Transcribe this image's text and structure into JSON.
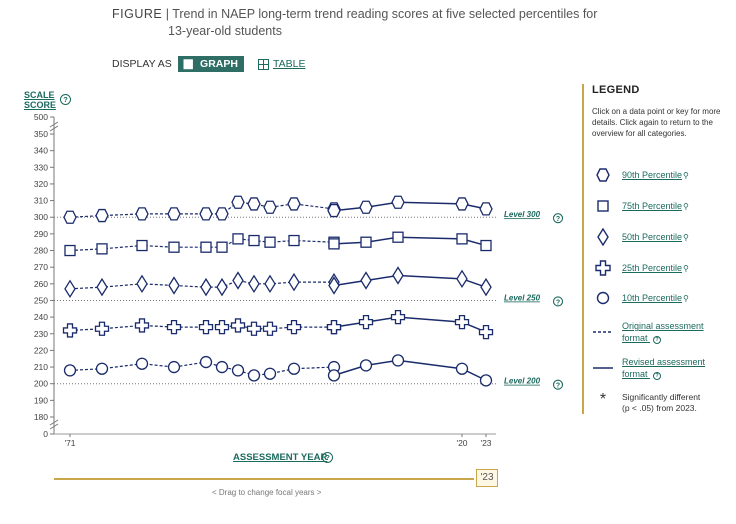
{
  "figure": {
    "lead": "FIGURE",
    "title_line1": "Trend in NAEP long-term trend reading scores at five selected percentiles for",
    "title_line2": "13-year-old students"
  },
  "display": {
    "label": "DISPLAY AS",
    "graph_label": "GRAPH",
    "table_label": "TABLE"
  },
  "axes": {
    "y_title_line1": "SCALE",
    "y_title_line2": "SCORE",
    "x_title": "ASSESSMENT YEAR",
    "help": "?"
  },
  "timeline": {
    "focal_label": "'23",
    "hint": "< Drag to change focal years >"
  },
  "legend": {
    "title": "LEGEND",
    "intro": "Click on a data point or key for more details. Click again to return to the overview for all categories.",
    "items": [
      {
        "label": "90th Percentile",
        "marker": "hexagon"
      },
      {
        "label": "75th Percentile",
        "marker": "square"
      },
      {
        "label": "50th Percentile",
        "marker": "diamond"
      },
      {
        "label": "25th Percentile",
        "marker": "cross"
      },
      {
        "label": "10th Percentile",
        "marker": "circle"
      }
    ],
    "format_original_line1": "Original assessment",
    "format_original_line2": "format",
    "format_revised_line1": "Revised assessment",
    "format_revised_line2": "format",
    "sig_star": "*",
    "sig_line1": "Significantly different",
    "sig_line2": "(p < .05) from 2023."
  },
  "colors": {
    "series": "#1a2b6b",
    "accent": "#2e6e64",
    "link": "#1b6a5e",
    "timeline": "#c9a64a"
  },
  "chart_data": {
    "type": "line",
    "ylim": [
      180,
      350
    ],
    "y_break_top": 500,
    "y_break_bottom": 0,
    "yticks": [
      500,
      350,
      340,
      330,
      320,
      310,
      300,
      290,
      280,
      270,
      260,
      250,
      240,
      230,
      220,
      210,
      200,
      190,
      180,
      0
    ],
    "x_tick_labels": [
      {
        "year": 1971,
        "label": "'71"
      },
      {
        "year": 2020,
        "label": "'20"
      },
      {
        "year": 2023,
        "label": "'23"
      }
    ],
    "levels": [
      {
        "label": "Level 300",
        "value": 300
      },
      {
        "label": "Level 250",
        "value": 250
      },
      {
        "label": "Level 200",
        "value": 200
      }
    ],
    "series": [
      {
        "name": "90th Percentile",
        "marker": "hexagon",
        "original": [
          [
            1971,
            300
          ],
          [
            1975,
            301
          ],
          [
            1980,
            302
          ],
          [
            1984,
            302
          ],
          [
            1988,
            302
          ],
          [
            1990,
            302
          ],
          [
            1992,
            309
          ],
          [
            1994,
            308
          ],
          [
            1996,
            306
          ],
          [
            1999,
            308
          ],
          [
            2004,
            305
          ]
        ],
        "revised": [
          [
            2004,
            304
          ],
          [
            2008,
            306
          ],
          [
            2012,
            309
          ],
          [
            2020,
            308
          ],
          [
            2023,
            305
          ]
        ]
      },
      {
        "name": "75th Percentile",
        "marker": "square",
        "original": [
          [
            1971,
            280
          ],
          [
            1975,
            281
          ],
          [
            1980,
            283
          ],
          [
            1984,
            282
          ],
          [
            1988,
            282
          ],
          [
            1990,
            282
          ],
          [
            1992,
            287
          ],
          [
            1994,
            286
          ],
          [
            1996,
            285
          ],
          [
            1999,
            286
          ],
          [
            2004,
            285
          ]
        ],
        "revised": [
          [
            2004,
            284
          ],
          [
            2008,
            285
          ],
          [
            2012,
            288
          ],
          [
            2020,
            287
          ],
          [
            2023,
            283
          ]
        ]
      },
      {
        "name": "50th Percentile",
        "marker": "diamond",
        "original": [
          [
            1971,
            257
          ],
          [
            1975,
            258
          ],
          [
            1980,
            260
          ],
          [
            1984,
            259
          ],
          [
            1988,
            258
          ],
          [
            1990,
            258
          ],
          [
            1992,
            262
          ],
          [
            1994,
            260
          ],
          [
            1996,
            260
          ],
          [
            1999,
            261
          ],
          [
            2004,
            261
          ]
        ],
        "revised": [
          [
            2004,
            259
          ],
          [
            2008,
            262
          ],
          [
            2012,
            265
          ],
          [
            2020,
            263
          ],
          [
            2023,
            258
          ]
        ]
      },
      {
        "name": "25th Percentile",
        "marker": "cross",
        "original": [
          [
            1971,
            232
          ],
          [
            1975,
            233
          ],
          [
            1980,
            235
          ],
          [
            1984,
            234
          ],
          [
            1988,
            234
          ],
          [
            1990,
            234
          ],
          [
            1992,
            235
          ],
          [
            1994,
            233
          ],
          [
            1996,
            233
          ],
          [
            1999,
            234
          ],
          [
            2004,
            234
          ]
        ],
        "revised": [
          [
            2004,
            234
          ],
          [
            2008,
            237
          ],
          [
            2012,
            240
          ],
          [
            2020,
            237
          ],
          [
            2023,
            231
          ]
        ]
      },
      {
        "name": "10th Percentile",
        "marker": "circle",
        "original": [
          [
            1971,
            208
          ],
          [
            1975,
            209
          ],
          [
            1980,
            212
          ],
          [
            1984,
            210
          ],
          [
            1988,
            213
          ],
          [
            1990,
            210
          ],
          [
            1992,
            208
          ],
          [
            1994,
            205
          ],
          [
            1996,
            206
          ],
          [
            1999,
            209
          ],
          [
            2004,
            210
          ]
        ],
        "revised": [
          [
            2004,
            205
          ],
          [
            2008,
            211
          ],
          [
            2012,
            214
          ],
          [
            2020,
            209
          ],
          [
            2023,
            202
          ]
        ]
      }
    ]
  }
}
